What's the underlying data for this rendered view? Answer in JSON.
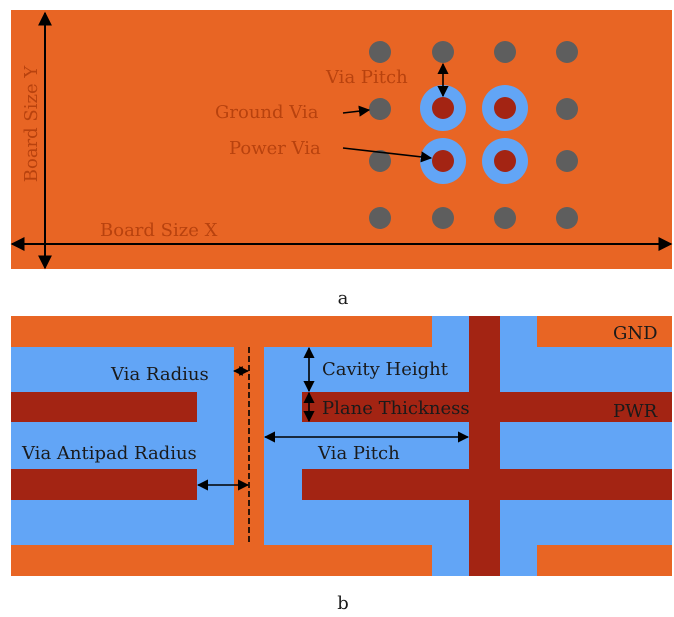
{
  "panel_a": {
    "caption": "a",
    "labels": {
      "board_size_y": "Board Size Y",
      "board_size_x": "Board Size X",
      "via_pitch": "Via Pitch",
      "ground_via": "Ground Via",
      "power_via": "Power Via"
    }
  },
  "panel_b": {
    "caption": "b",
    "labels": {
      "gnd": "GND",
      "pwr": "PWR",
      "via_radius": "Via Radius",
      "cavity_height": "Cavity Height",
      "plane_thickness": "Plane Thickness",
      "via_antipad_radius": "Via Antipad Radius",
      "via_pitch": "Via Pitch"
    }
  },
  "colors": {
    "board": "#e86524",
    "antipad": "#62a5f6",
    "power_via": "#a32413",
    "ground_via": "#5e5e5e",
    "label_orange": "#b8420e",
    "label_dark": "#1a1a1a"
  }
}
